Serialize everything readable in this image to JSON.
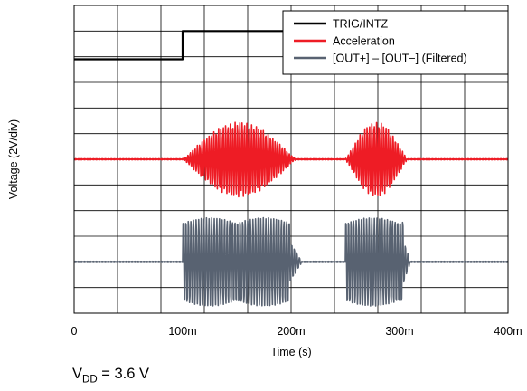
{
  "chart_data": {
    "type": "line",
    "xlabel": "Time (s)",
    "ylabel": "Voltage (2V/div)",
    "xlim": [
      0,
      0.4
    ],
    "x_ticks": [
      0,
      0.1,
      0.2,
      0.3,
      0.4
    ],
    "x_tick_labels": [
      "0",
      "100m",
      "200m",
      "300m",
      "400m"
    ],
    "y_divisions": 12,
    "grid": true,
    "legend_position": "top-right",
    "colors": {
      "trig": "#000000",
      "accel": "#ee1c25",
      "out": "#586271"
    },
    "series": [
      {
        "name": "TRIG/INTZ",
        "kind": "pulse",
        "baseline_div": 3.9,
        "high_div": 5.0,
        "pulses": [
          [
            0.1,
            0.2
          ],
          [
            0.25,
            0.3
          ]
        ]
      },
      {
        "name": "Acceleration",
        "kind": "burst",
        "center_div": 0.0,
        "peak_amplitude_div": 1.45,
        "bursts": [
          [
            0.1,
            0.21
          ],
          [
            0.25,
            0.31
          ]
        ]
      },
      {
        "name": "[OUT+] – [OUT−] (Filtered)",
        "kind": "burst",
        "center_div": -4.0,
        "peak_amplitude_div": 1.7,
        "bursts": [
          [
            0.1,
            0.21
          ],
          [
            0.25,
            0.31
          ]
        ]
      }
    ]
  },
  "note": {
    "prefix": "V",
    "sub": "DD",
    "suffix": " = 3.6 V"
  }
}
